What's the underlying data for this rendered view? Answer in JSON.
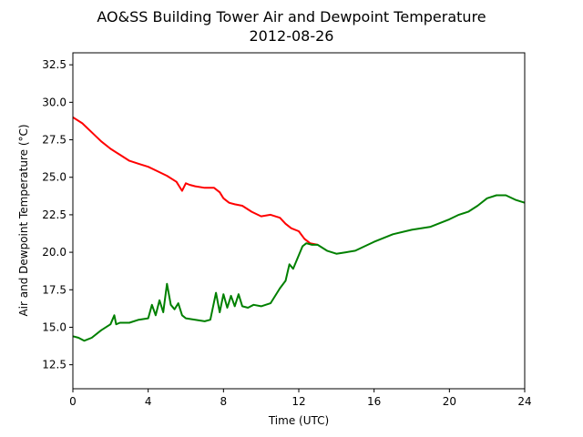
{
  "chart_data": {
    "type": "line",
    "title": "AO&SS Building Tower Air and Dewpoint Temperature",
    "subtitle": "2012-08-26",
    "xlabel": "Time (UTC)",
    "ylabel": "Air and Dewpoint Temperature (°C)",
    "xlim": [
      0,
      24
    ],
    "ylim": [
      10.9,
      33.3
    ],
    "xticks": [
      0,
      4,
      8,
      12,
      16,
      20,
      24
    ],
    "yticks": [
      12.5,
      15.0,
      17.5,
      20.0,
      22.5,
      25.0,
      27.5,
      30.0,
      32.5
    ],
    "ytick_labels": [
      "12.5",
      "15.0",
      "17.5",
      "20.0",
      "22.5",
      "25.0",
      "27.5",
      "30.0",
      "32.5"
    ],
    "grid": false,
    "series": [
      {
        "color": "#ff0000",
        "x": [
          0,
          0.5,
          1,
          1.5,
          2,
          2.5,
          3,
          3.5,
          4,
          4.5,
          5,
          5.5,
          5.8,
          6.0,
          6.2,
          6.5,
          7,
          7.5,
          7.8,
          8.0,
          8.3,
          8.6,
          9,
          9.5,
          10,
          10.5,
          11,
          11.3,
          11.6,
          12,
          12.3,
          12.6,
          13
        ],
        "y": [
          29.0,
          28.6,
          28.0,
          27.4,
          26.9,
          26.5,
          26.1,
          25.9,
          25.7,
          25.4,
          25.1,
          24.7,
          24.1,
          24.6,
          24.5,
          24.4,
          24.3,
          24.3,
          24.0,
          23.6,
          23.3,
          23.2,
          23.1,
          22.7,
          22.4,
          22.5,
          22.3,
          21.9,
          21.6,
          21.4,
          20.9,
          20.6,
          20.5
        ]
      },
      {
        "color": "#008000",
        "x": [
          0,
          0.3,
          0.6,
          1,
          1.5,
          2,
          2.2,
          2.3,
          2.5,
          3,
          3.5,
          4,
          4.2,
          4.4,
          4.6,
          4.8,
          5.0,
          5.2,
          5.4,
          5.6,
          5.8,
          6,
          6.5,
          7,
          7.3,
          7.6,
          7.8,
          8.0,
          8.2,
          8.4,
          8.6,
          8.8,
          9.0,
          9.3,
          9.6,
          10,
          10.5,
          11,
          11.3,
          11.5,
          11.7,
          12,
          12.2,
          12.4,
          12.7,
          13,
          13.5,
          14,
          14.5,
          15,
          15.5,
          16,
          17,
          18,
          19,
          20,
          20.5,
          21,
          21.5,
          22,
          22.5,
          23,
          23.5,
          24
        ],
        "y": [
          14.4,
          14.3,
          14.1,
          14.3,
          14.8,
          15.2,
          15.8,
          15.2,
          15.3,
          15.3,
          15.5,
          15.6,
          16.5,
          15.8,
          16.8,
          16.0,
          17.9,
          16.5,
          16.2,
          16.6,
          15.8,
          15.6,
          15.5,
          15.4,
          15.5,
          17.3,
          16.0,
          17.2,
          16.3,
          17.1,
          16.4,
          17.2,
          16.4,
          16.3,
          16.5,
          16.4,
          16.6,
          17.6,
          18.1,
          19.2,
          18.9,
          19.8,
          20.4,
          20.6,
          20.5,
          20.5,
          20.1,
          19.9,
          20.0,
          20.1,
          20.4,
          20.7,
          21.2,
          21.5,
          21.7,
          22.2,
          22.5,
          22.7,
          23.1,
          23.6,
          23.8,
          23.8,
          23.5,
          23.3
        ]
      }
    ]
  }
}
